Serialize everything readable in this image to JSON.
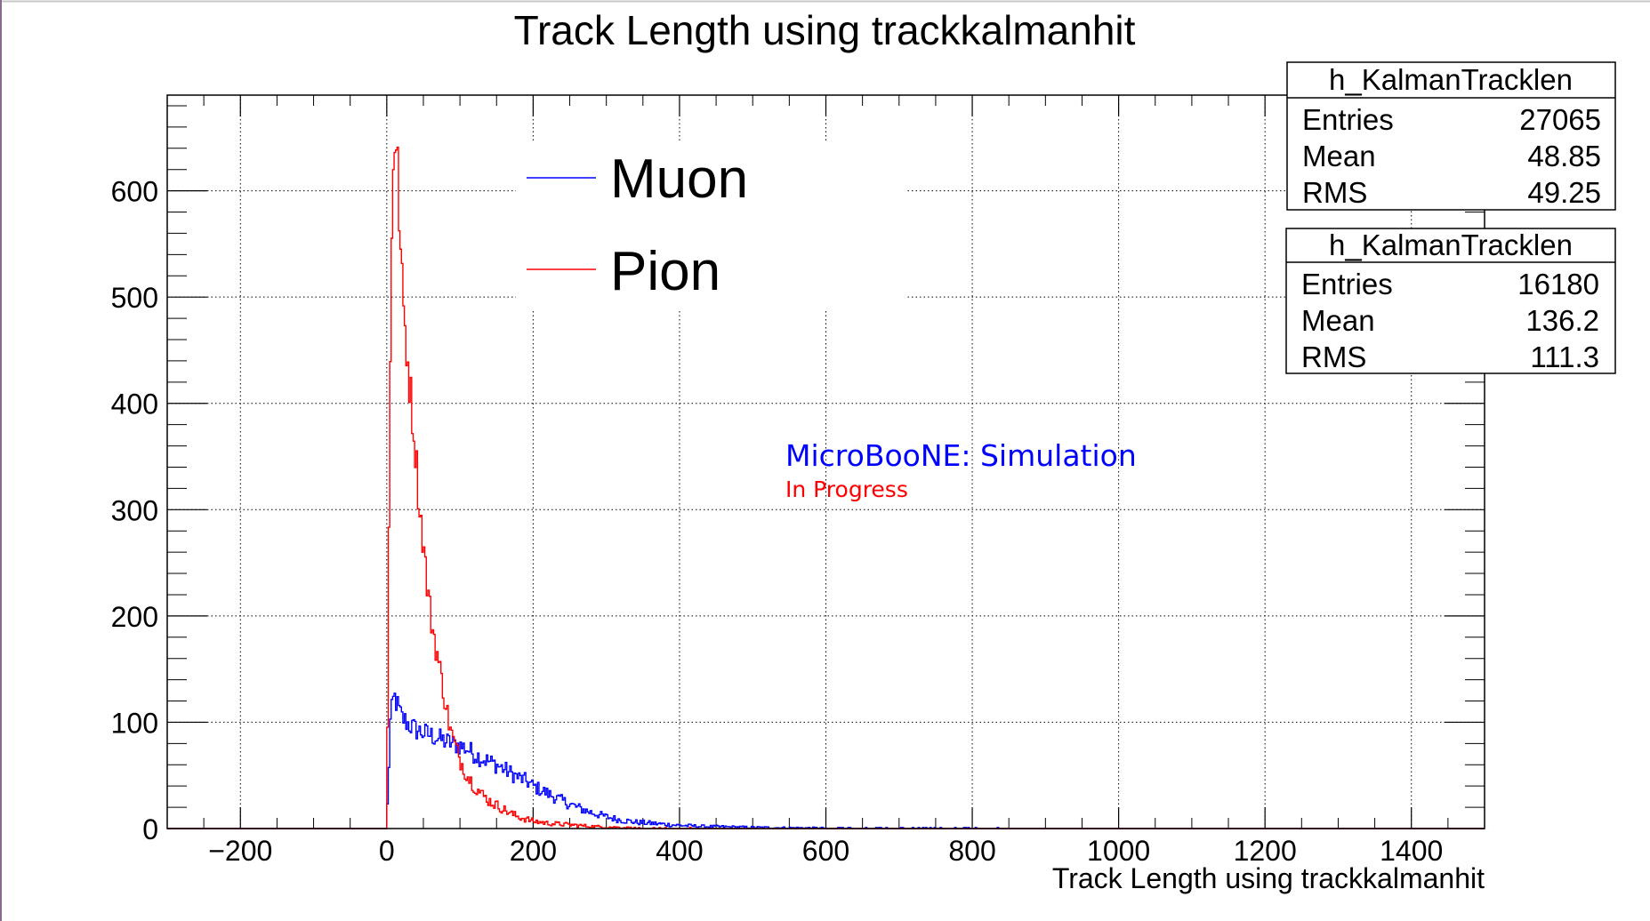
{
  "chart_data": {
    "type": "histogram",
    "title": "Track Length using trackkalmanhit",
    "xlabel": "Track Length using trackkalmanhit",
    "ylabel": "",
    "xlim": [
      -300,
      1500
    ],
    "ylim": [
      0,
      690
    ],
    "x_ticks": [
      -200,
      0,
      200,
      400,
      600,
      800,
      1000,
      1200,
      1400
    ],
    "y_ticks": [
      0,
      100,
      200,
      300,
      400,
      500,
      600
    ],
    "grid": true,
    "legend": {
      "placement": "top-center",
      "entries": [
        "Muon",
        "Pion"
      ]
    },
    "annotation": {
      "line1": "MicroBooNE: Simulation",
      "line2": "In Progress",
      "line1_color": "#0000ff",
      "line2_color": "#ff0000"
    },
    "stat_boxes": [
      {
        "title": "h_KalmanTracklen",
        "entries_label": "Entries",
        "entries": "27065",
        "mean_label": "Mean",
        "mean": "48.85",
        "rms_label": "RMS",
        "rms": "49.25"
      },
      {
        "title": "h_KalmanTracklen",
        "entries_label": "Entries",
        "entries": "16180",
        "mean_label": "Mean",
        "mean": "136.2",
        "rms_label": "RMS",
        "rms": "111.3"
      }
    ],
    "series": [
      {
        "name": "Muon",
        "color": "#0000ff",
        "x": [
          0,
          5,
          10,
          15,
          20,
          30,
          40,
          50,
          60,
          70,
          80,
          90,
          100,
          110,
          120,
          130,
          140,
          150,
          160,
          170,
          180,
          190,
          200,
          220,
          240,
          260,
          280,
          300,
          320,
          340,
          360,
          380,
          400,
          430,
          460,
          500,
          550,
          600,
          650,
          700,
          750,
          800,
          900,
          1000,
          1100,
          1200,
          1300,
          1400
        ],
        "y": [
          2,
          100,
          125,
          115,
          105,
          98,
          93,
          90,
          88,
          85,
          82,
          80,
          78,
          75,
          70,
          66,
          63,
          60,
          56,
          52,
          48,
          45,
          40,
          33,
          26,
          20,
          15,
          11,
          8,
          6,
          5,
          4,
          3,
          2,
          1.6,
          1.1,
          0.7,
          0.5,
          0.3,
          0.2,
          0.15,
          0.1,
          0,
          0,
          0,
          0,
          0,
          0
        ]
      },
      {
        "name": "Pion",
        "color": "#ff0000",
        "x": [
          0,
          3,
          6,
          8,
          10,
          12,
          15,
          18,
          20,
          25,
          30,
          35,
          40,
          45,
          50,
          55,
          60,
          65,
          70,
          75,
          80,
          85,
          90,
          95,
          100,
          110,
          120,
          130,
          140,
          150,
          160,
          170,
          180,
          190,
          200,
          220,
          240,
          260,
          280,
          300,
          320,
          340,
          360,
          380,
          400,
          450,
          500
        ],
        "y": [
          0,
          280,
          520,
          610,
          655,
          640,
          620,
          560,
          520,
          470,
          430,
          390,
          350,
          300,
          270,
          230,
          200,
          180,
          160,
          140,
          120,
          100,
          85,
          75,
          65,
          50,
          40,
          32,
          26,
          22,
          18,
          14,
          11,
          9,
          7,
          5,
          4,
          3,
          2,
          1.5,
          1,
          0.5,
          0.3,
          0.2,
          0.1,
          0,
          0
        ]
      }
    ]
  }
}
